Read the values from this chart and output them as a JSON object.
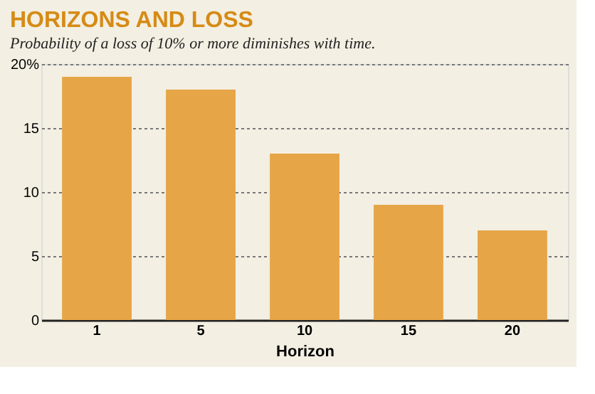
{
  "chart_data": {
    "type": "bar",
    "title": "HORIZONS AND LOSS",
    "subtitle": "Probability of a loss of 10% or more diminishes with time.",
    "xlabel": "Horizon",
    "categories": [
      "1",
      "5",
      "10",
      "15",
      "20"
    ],
    "values": [
      19,
      18,
      13,
      9,
      7
    ],
    "color": "#e6a547",
    "ylim": [
      0,
      20
    ],
    "yticks": [
      0,
      5,
      10,
      15,
      {
        "value": 20,
        "label": "20%"
      }
    ],
    "grid": "y"
  }
}
